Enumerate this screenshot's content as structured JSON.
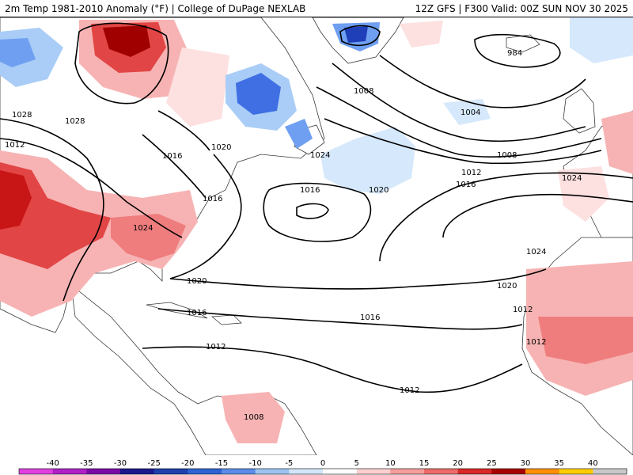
{
  "header": {
    "title_left": "2m Temp 1981-2010 Anomaly (°F) | College of DuPage NEXLAB",
    "title_right": "12Z GFS | F300 Valid: 00Z SUN NOV 30 2025"
  },
  "colors": {
    "ocean": "#ffffff",
    "coast": "#3a3a3a",
    "isobar": "#000000",
    "warm": [
      "#fde0e0",
      "#f7b3b3",
      "#ef7d7d",
      "#e24545",
      "#c81515",
      "#a00000"
    ],
    "cool": [
      "#d6e8fb",
      "#a9cdf6",
      "#6f9ff0",
      "#3f6fe3",
      "#1e3fb8"
    ]
  },
  "isobar_labels": [
    {
      "value": "1028"
    },
    {
      "value": "1028"
    },
    {
      "value": "1012"
    },
    {
      "value": "1016"
    },
    {
      "value": "1020"
    },
    {
      "value": "1024"
    },
    {
      "value": "1016"
    },
    {
      "value": "1024"
    },
    {
      "value": "1020"
    },
    {
      "value": "1016"
    },
    {
      "value": "1012"
    },
    {
      "value": "1008"
    },
    {
      "value": "1004"
    },
    {
      "value": "984"
    },
    {
      "value": "1008"
    },
    {
      "value": "1012"
    },
    {
      "value": "1016"
    },
    {
      "value": "1020"
    },
    {
      "value": "1024"
    },
    {
      "value": "1024"
    },
    {
      "value": "1020"
    },
    {
      "value": "1016"
    },
    {
      "value": "1016"
    },
    {
      "value": "1012"
    },
    {
      "value": "1012"
    },
    {
      "value": "1012"
    },
    {
      "value": "1008"
    }
  ],
  "colorbar": {
    "ticks": [
      "-40",
      "-35",
      "-30",
      "-25",
      "-20",
      "-15",
      "-10",
      "-5",
      "0",
      "5",
      "10",
      "15",
      "20",
      "25",
      "30",
      "35",
      "40"
    ],
    "colors": [
      "#e040e0",
      "#b020c8",
      "#7a0aa8",
      "#1a1a8c",
      "#1f3fae",
      "#2f62d4",
      "#5a8ce8",
      "#9cc3f2",
      "#d3e6fa",
      "#ffffff",
      "#fbd0d0",
      "#f59c9c",
      "#ec6b6b",
      "#d82828",
      "#a80000",
      "#ff9000",
      "#ffcc00",
      "#c8c8c8"
    ]
  }
}
